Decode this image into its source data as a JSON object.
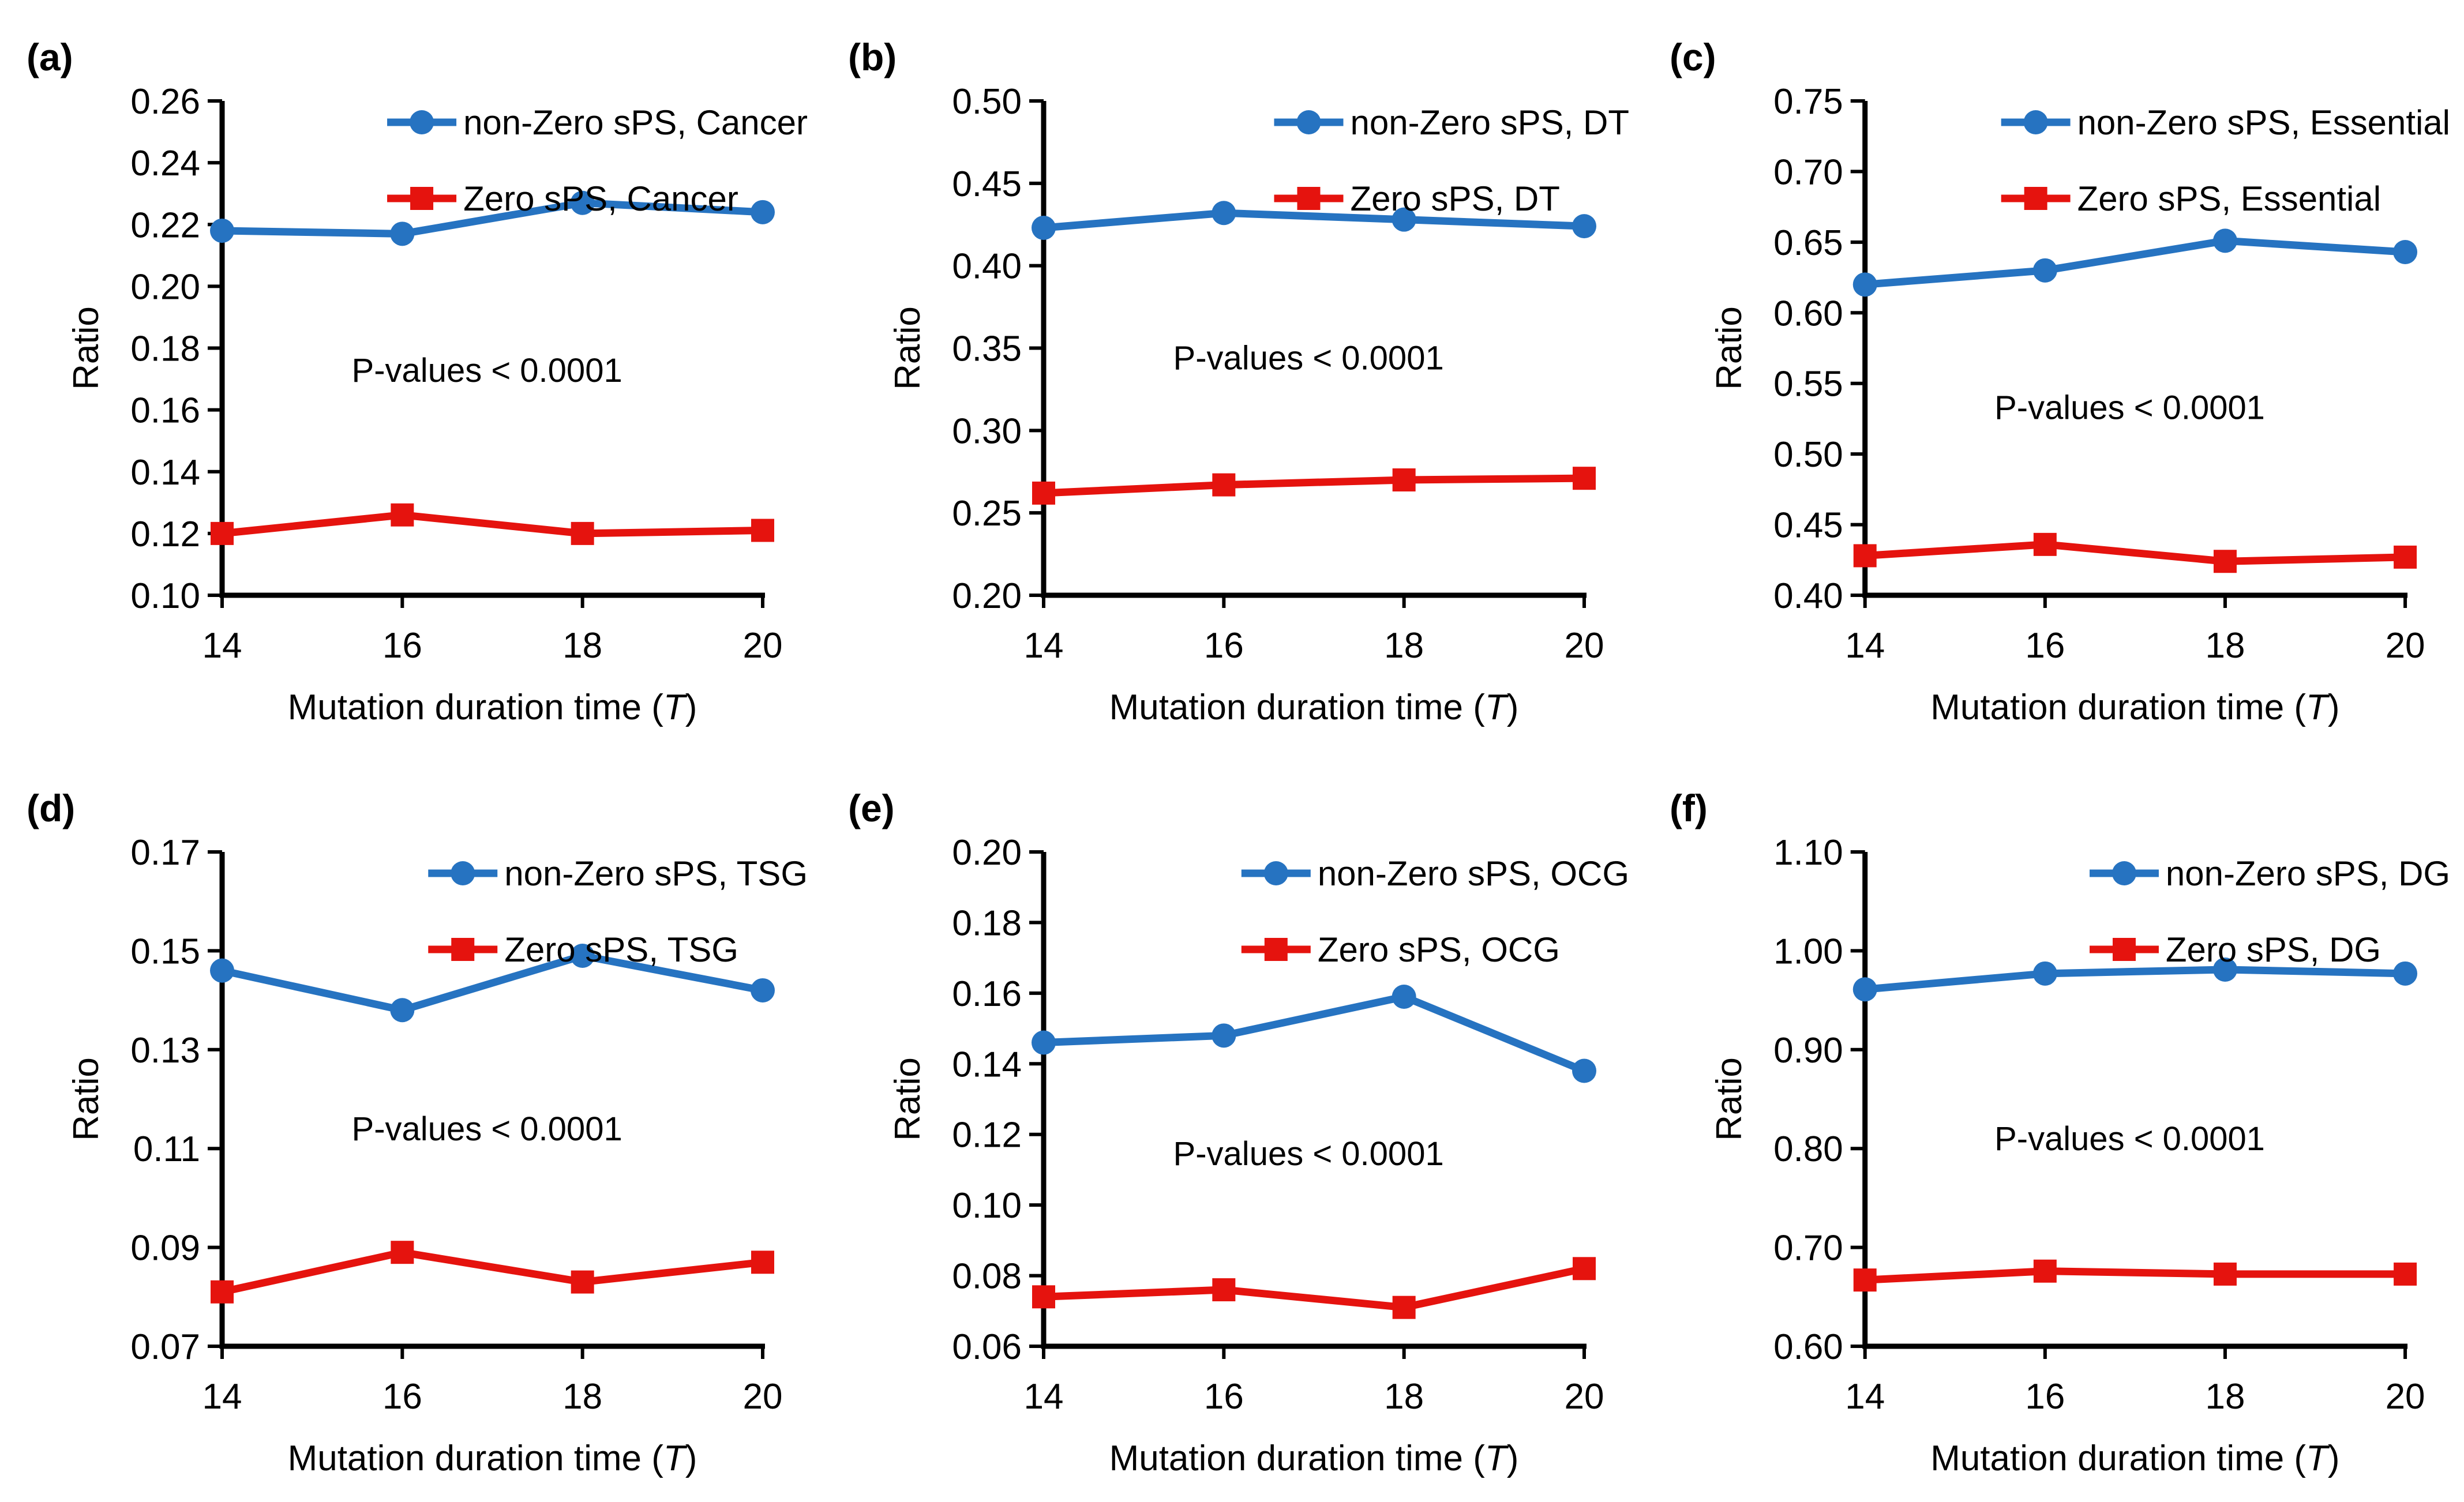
{
  "figure": {
    "background": "#ffffff",
    "series_colors": {
      "non_zero_sps": "#2673c1",
      "zero_sps": "#e5130e"
    },
    "axis_color": "#000000",
    "x_axis_label": "Mutation duration time (T)",
    "y_axis_label": "Ratio",
    "annotation_text": "P-values < 0.0001"
  },
  "chart_data": [
    {
      "type": "line",
      "panel_label": "(a)",
      "x": [
        14,
        16,
        18,
        20
      ],
      "xlabel": "Mutation duration time (T)",
      "ylabel": "Ratio",
      "ylim": [
        0.1,
        0.26
      ],
      "ystep": 0.02,
      "tick_decimals": 2,
      "grid": false,
      "legend_position": "top-right-inside",
      "annotation": "P-values < 0.0001",
      "annotation_pos": {
        "x_frac": 0.49,
        "y_frac": 0.545
      },
      "series": [
        {
          "name": "non-Zero sPS, Cancer",
          "color": "#2673c1",
          "marker": "circle",
          "values": [
            0.218,
            0.217,
            0.227,
            0.224
          ]
        },
        {
          "name": "Zero sPS, Cancer",
          "color": "#e5130e",
          "marker": "square",
          "values": [
            0.12,
            0.126,
            0.12,
            0.121
          ]
        }
      ]
    },
    {
      "type": "line",
      "panel_label": "(b)",
      "x": [
        14,
        16,
        18,
        20
      ],
      "xlabel": "Mutation duration time (T)",
      "ylabel": "Ratio",
      "ylim": [
        0.2,
        0.5
      ],
      "ystep": 0.05,
      "tick_decimals": 2,
      "grid": false,
      "legend_position": "top-right-inside",
      "annotation": "P-values < 0.0001",
      "annotation_pos": {
        "x_frac": 0.49,
        "y_frac": 0.52
      },
      "series": [
        {
          "name": "non-Zero sPS, DT",
          "color": "#2673c1",
          "marker": "circle",
          "values": [
            0.423,
            0.432,
            0.428,
            0.424
          ]
        },
        {
          "name": "Zero sPS, DT",
          "color": "#e5130e",
          "marker": "square",
          "values": [
            0.262,
            0.267,
            0.27,
            0.271
          ]
        }
      ]
    },
    {
      "type": "line",
      "panel_label": "(c)",
      "x": [
        14,
        16,
        18,
        20
      ],
      "xlabel": "Mutation duration time (T)",
      "ylabel": "Ratio",
      "ylim": [
        0.4,
        0.75
      ],
      "ystep": 0.05,
      "tick_decimals": 2,
      "grid": false,
      "legend_position": "top-right-inside",
      "annotation": "P-values < 0.0001",
      "annotation_pos": {
        "x_frac": 0.49,
        "y_frac": 0.62
      },
      "series": [
        {
          "name": "non-Zero sPS, Essential",
          "color": "#2673c1",
          "marker": "circle",
          "values": [
            0.62,
            0.63,
            0.651,
            0.643
          ]
        },
        {
          "name": "Zero sPS, Essential",
          "color": "#e5130e",
          "marker": "square",
          "values": [
            0.428,
            0.436,
            0.424,
            0.427
          ]
        }
      ]
    },
    {
      "type": "line",
      "panel_label": "(d)",
      "x": [
        14,
        16,
        18,
        20
      ],
      "xlabel": "Mutation duration time (T)",
      "ylabel": "Ratio",
      "ylim": [
        0.07,
        0.17
      ],
      "ystep": 0.02,
      "tick_decimals": 2,
      "grid": false,
      "legend_position": "top-right-inside",
      "annotation": "P-values < 0.0001",
      "annotation_pos": {
        "x_frac": 0.49,
        "y_frac": 0.56
      },
      "series": [
        {
          "name": "non-Zero sPS, TSG",
          "color": "#2673c1",
          "marker": "circle",
          "values": [
            0.146,
            0.138,
            0.149,
            0.142
          ]
        },
        {
          "name": "Zero sPS, TSG",
          "color": "#e5130e",
          "marker": "square",
          "values": [
            0.081,
            0.089,
            0.083,
            0.087
          ]
        }
      ]
    },
    {
      "type": "line",
      "panel_label": "(e)",
      "x": [
        14,
        16,
        18,
        20
      ],
      "xlabel": "Mutation duration time (T)",
      "ylabel": "Ratio",
      "ylim": [
        0.06,
        0.2
      ],
      "ystep": 0.02,
      "tick_decimals": 2,
      "grid": false,
      "legend_position": "top-right-inside",
      "annotation": "P-values < 0.0001",
      "annotation_pos": {
        "x_frac": 0.49,
        "y_frac": 0.61
      },
      "series": [
        {
          "name": "non-Zero sPS, OCG",
          "color": "#2673c1",
          "marker": "circle",
          "values": [
            0.146,
            0.148,
            0.159,
            0.138
          ]
        },
        {
          "name": "Zero sPS, OCG",
          "color": "#e5130e",
          "marker": "square",
          "values": [
            0.074,
            0.076,
            0.071,
            0.082
          ]
        }
      ]
    },
    {
      "type": "line",
      "panel_label": "(f)",
      "x": [
        14,
        16,
        18,
        20
      ],
      "xlabel": "Mutation duration time (T)",
      "ylabel": "Ratio",
      "ylim": [
        0.6,
        1.1
      ],
      "ystep": 0.1,
      "tick_decimals": 2,
      "grid": false,
      "legend_position": "top-right-inside",
      "annotation": "P-values < 0.0001",
      "annotation_pos": {
        "x_frac": 0.49,
        "y_frac": 0.58
      },
      "series": [
        {
          "name": "non-Zero sPS, DG",
          "color": "#2673c1",
          "marker": "circle",
          "values": [
            0.961,
            0.977,
            0.981,
            0.977
          ]
        },
        {
          "name": "Zero sPS, DG",
          "color": "#e5130e",
          "marker": "square",
          "values": [
            0.667,
            0.676,
            0.673,
            0.673
          ]
        }
      ]
    }
  ]
}
